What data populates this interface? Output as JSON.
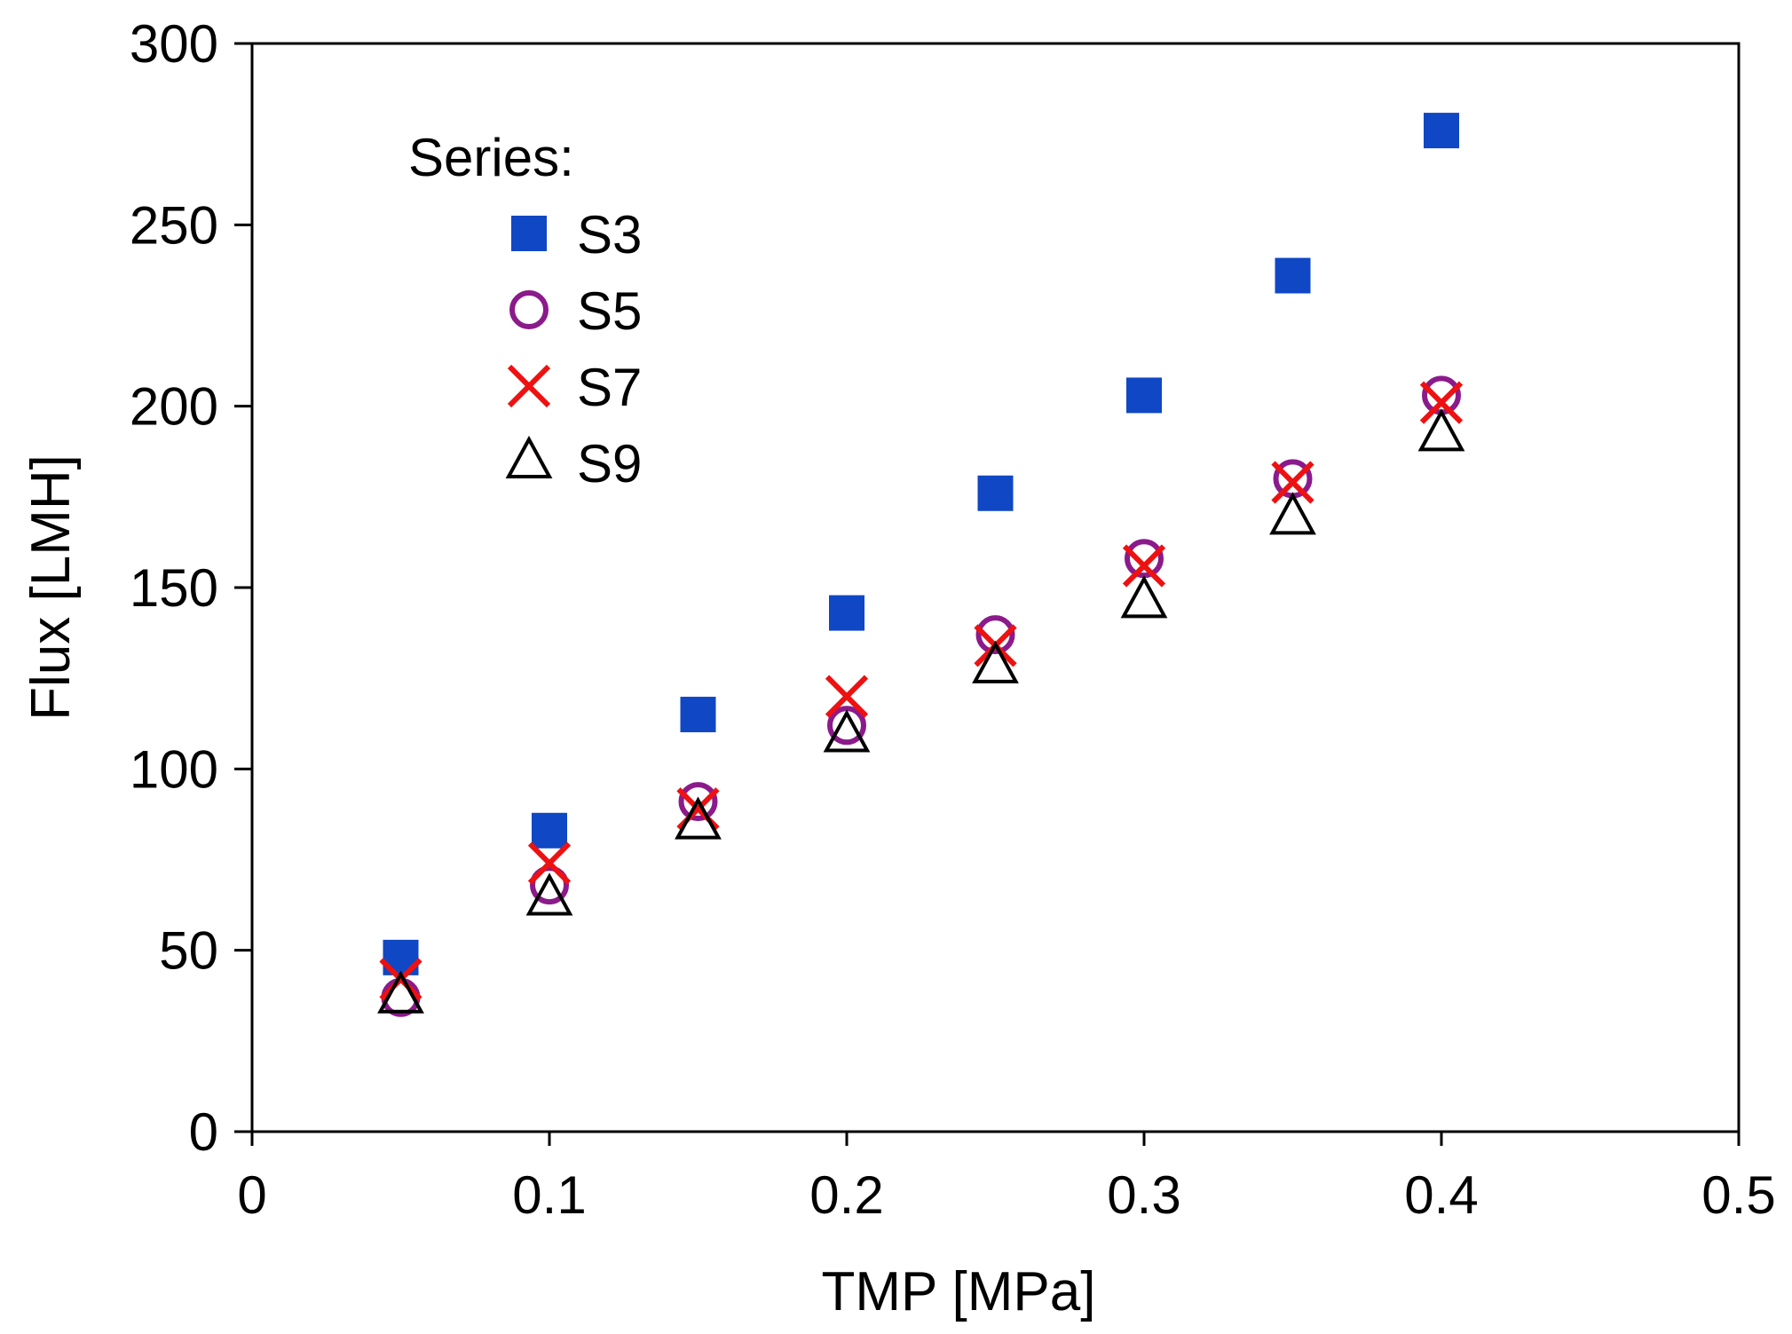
{
  "chart_data": {
    "type": "scatter",
    "title": "",
    "xlabel": "TMP [MPa]",
    "ylabel": "Flux [LMH]",
    "xlim": [
      0,
      0.5
    ],
    "ylim": [
      0,
      300
    ],
    "x_ticks": [
      0,
      0.1,
      0.2,
      0.3,
      0.4,
      0.5
    ],
    "x_tick_labels": [
      "0",
      "0.1",
      "0.2",
      "0.3",
      "0.4",
      "0.5"
    ],
    "y_ticks": [
      0,
      50,
      100,
      150,
      200,
      250,
      300
    ],
    "y_tick_labels": [
      "0",
      "50",
      "100",
      "150",
      "200",
      "250",
      "300"
    ],
    "grid": false,
    "legend": {
      "title": "Series:",
      "position": "top-left"
    },
    "x": [
      0.05,
      0.1,
      0.15,
      0.2,
      0.25,
      0.3,
      0.35,
      0.4
    ],
    "series": [
      {
        "name": "S3",
        "marker": "filled-square",
        "color": "#1047c4",
        "values": [
          48,
          83,
          115,
          143,
          176,
          203,
          236,
          276
        ]
      },
      {
        "name": "S5",
        "marker": "open-circle",
        "color": "#8b1a8b",
        "values": [
          37,
          68,
          91,
          112,
          137,
          158,
          180,
          203
        ]
      },
      {
        "name": "S7",
        "marker": "x",
        "color": "#ee1111",
        "values": [
          42,
          74,
          89,
          120,
          134,
          156,
          179,
          201
        ]
      },
      {
        "name": "S9",
        "marker": "open-triangle",
        "color": "#000000",
        "values": [
          37,
          64,
          85,
          109,
          128,
          146,
          169,
          192
        ]
      }
    ]
  }
}
